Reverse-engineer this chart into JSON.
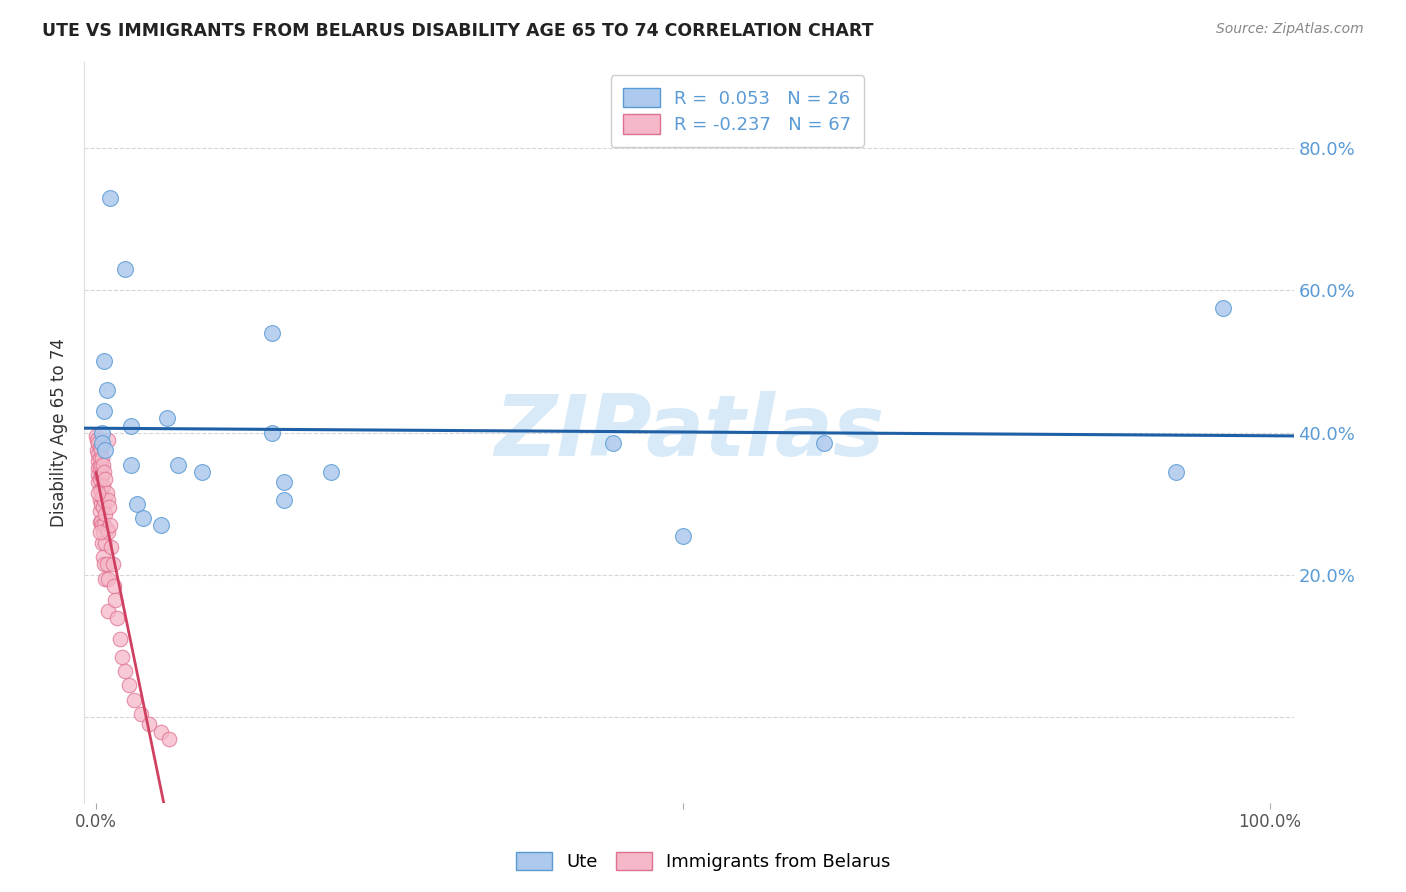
{
  "title": "UTE VS IMMIGRANTS FROM BELARUS DISABILITY AGE 65 TO 74 CORRELATION CHART",
  "source": "Source: ZipAtlas.com",
  "ylabel": "Disability Age 65 to 74",
  "xlim": [
    -0.01,
    1.02
  ],
  "ylim": [
    -0.12,
    0.92
  ],
  "ytick_positions": [
    0.0,
    0.2,
    0.4,
    0.6,
    0.8
  ],
  "ytick_labels": [
    "",
    "20.0%",
    "40.0%",
    "60.0%",
    "80.0%"
  ],
  "xtick_positions": [
    0.0,
    0.5,
    1.0
  ],
  "xtick_labels": [
    "0.0%",
    "",
    "100.0%"
  ],
  "ute_color": "#adc9ed",
  "ute_edge_color": "#5b9bd5",
  "belarus_color": "#f5b8c8",
  "belarus_edge_color": "#e07090",
  "regression_ute_color": "#1f5fa6",
  "regression_belarus_solid_color": "#d04060",
  "regression_belarus_dash_color": "#f0b0c0",
  "tick_color": "#5b9bd5",
  "grid_color": "#cccccc",
  "watermark": "ZIPatlas",
  "watermark_color": "#d8eaf8",
  "legend_R_ute": "R =  0.053",
  "legend_N_ute": "N = 26",
  "legend_R_belarus": "R = -0.237",
  "legend_N_belarus": "N = 67",
  "background_color": "#ffffff",
  "ute_points": [
    [
      0.012,
      0.73
    ],
    [
      0.025,
      0.63
    ],
    [
      0.007,
      0.5
    ],
    [
      0.009,
      0.46
    ],
    [
      0.007,
      0.43
    ],
    [
      0.005,
      0.4
    ],
    [
      0.06,
      0.42
    ],
    [
      0.03,
      0.41
    ],
    [
      0.005,
      0.385
    ],
    [
      0.008,
      0.375
    ],
    [
      0.03,
      0.355
    ],
    [
      0.07,
      0.355
    ],
    [
      0.09,
      0.345
    ],
    [
      0.15,
      0.54
    ],
    [
      0.15,
      0.4
    ],
    [
      0.16,
      0.33
    ],
    [
      0.16,
      0.305
    ],
    [
      0.035,
      0.3
    ],
    [
      0.04,
      0.28
    ],
    [
      0.055,
      0.27
    ],
    [
      0.2,
      0.345
    ],
    [
      0.44,
      0.385
    ],
    [
      0.5,
      0.255
    ],
    [
      0.62,
      0.385
    ],
    [
      0.92,
      0.345
    ],
    [
      0.96,
      0.575
    ]
  ],
  "belarus_points": [
    [
      0.0,
      0.395
    ],
    [
      0.001,
      0.39
    ],
    [
      0.001,
      0.375
    ],
    [
      0.002,
      0.385
    ],
    [
      0.002,
      0.37
    ],
    [
      0.002,
      0.36
    ],
    [
      0.002,
      0.35
    ],
    [
      0.002,
      0.34
    ],
    [
      0.002,
      0.33
    ],
    [
      0.003,
      0.38
    ],
    [
      0.003,
      0.365
    ],
    [
      0.003,
      0.35
    ],
    [
      0.003,
      0.335
    ],
    [
      0.003,
      0.32
    ],
    [
      0.003,
      0.305
    ],
    [
      0.003,
      0.29
    ],
    [
      0.003,
      0.275
    ],
    [
      0.004,
      0.375
    ],
    [
      0.004,
      0.355
    ],
    [
      0.004,
      0.34
    ],
    [
      0.004,
      0.32
    ],
    [
      0.004,
      0.3
    ],
    [
      0.004,
      0.275
    ],
    [
      0.005,
      0.365
    ],
    [
      0.005,
      0.34
    ],
    [
      0.005,
      0.31
    ],
    [
      0.005,
      0.27
    ],
    [
      0.005,
      0.245
    ],
    [
      0.006,
      0.355
    ],
    [
      0.006,
      0.325
    ],
    [
      0.006,
      0.295
    ],
    [
      0.006,
      0.26
    ],
    [
      0.006,
      0.225
    ],
    [
      0.007,
      0.345
    ],
    [
      0.007,
      0.305
    ],
    [
      0.007,
      0.27
    ],
    [
      0.007,
      0.215
    ],
    [
      0.008,
      0.335
    ],
    [
      0.008,
      0.285
    ],
    [
      0.008,
      0.245
    ],
    [
      0.008,
      0.195
    ],
    [
      0.009,
      0.315
    ],
    [
      0.009,
      0.265
    ],
    [
      0.009,
      0.215
    ],
    [
      0.01,
      0.305
    ],
    [
      0.01,
      0.26
    ],
    [
      0.01,
      0.195
    ],
    [
      0.01,
      0.15
    ],
    [
      0.011,
      0.295
    ],
    [
      0.012,
      0.27
    ],
    [
      0.013,
      0.24
    ],
    [
      0.014,
      0.215
    ],
    [
      0.015,
      0.185
    ],
    [
      0.016,
      0.165
    ],
    [
      0.018,
      0.14
    ],
    [
      0.02,
      0.11
    ],
    [
      0.022,
      0.085
    ],
    [
      0.025,
      0.065
    ],
    [
      0.028,
      0.045
    ],
    [
      0.032,
      0.025
    ],
    [
      0.038,
      0.005
    ],
    [
      0.045,
      -0.01
    ],
    [
      0.055,
      -0.02
    ],
    [
      0.062,
      -0.03
    ],
    [
      0.01,
      0.39
    ],
    [
      0.002,
      0.315
    ],
    [
      0.003,
      0.26
    ]
  ]
}
